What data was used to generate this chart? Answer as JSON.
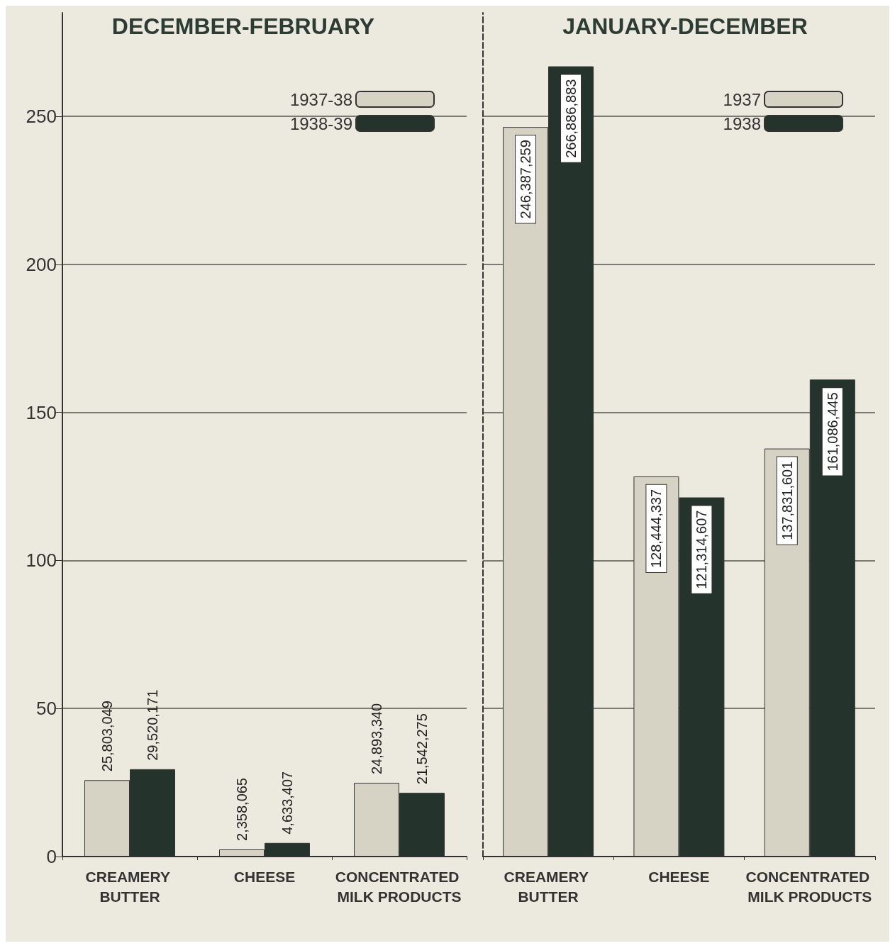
{
  "chart_data": [
    {
      "type": "bar",
      "title": "DECEMBER-FEBRUARY",
      "categories": [
        "CREAMERY BUTTER",
        "CHEESE",
        "CONCENTRATED MILK PRODUCTS"
      ],
      "series": [
        {
          "name": "1937-38",
          "color": "#d6d2c4",
          "values": [
            25.8,
            2.4,
            24.9
          ]
        },
        {
          "name": "1938-39",
          "color": "#24332b",
          "values": [
            29.5,
            4.6,
            21.5
          ]
        }
      ],
      "annotations": [
        {
          "text": "25,803,049",
          "x": "CREAMERY BUTTER",
          "y": 25.8
        },
        {
          "text": "29,520,171",
          "x": "CREAMERY BUTTER",
          "y": 29.5
        },
        {
          "text": "2,358,065",
          "x": "CHEESE",
          "y": 2.4
        },
        {
          "text": "4,633,407",
          "x": "CHEESE",
          "y": 4.6
        },
        {
          "text": "24,893,340",
          "x": "CONCENTRATED MILK PRODUCTS",
          "y": 24.9
        },
        {
          "text": "21,542,275",
          "x": "CONCENTRATED MILK PRODUCTS",
          "y": 21.5
        }
      ],
      "ylim": [
        0,
        285
      ],
      "yticks": [
        0,
        50,
        100,
        150,
        200,
        250
      ],
      "grid": "y",
      "legend": "top right"
    },
    {
      "type": "bar",
      "title": "JANUARY-DECEMBER",
      "categories": [
        "CREAMERY BUTTER",
        "CHEESE",
        "CONCENTRATED MILK PRODUCTS"
      ],
      "series": [
        {
          "name": "1937",
          "color": "#d6d2c4",
          "values": [
            246.4,
            128.4,
            137.8
          ]
        },
        {
          "name": "1938",
          "color": "#24332b",
          "values": [
            266.9,
            121.3,
            161.1
          ]
        }
      ],
      "annotations": [
        {
          "text": "246,387,259",
          "x": "CREAMERY BUTTER",
          "y": 246.4
        },
        {
          "text": "266,886,883",
          "x": "CREAMERY BUTTER",
          "y": 266.9
        },
        {
          "text": "128,444,337",
          "x": "CHEESE",
          "y": 128.4
        },
        {
          "text": "121,314,607",
          "x": "CHEESE",
          "y": 121.3
        },
        {
          "text": "137,831,601",
          "x": "CONCENTRATED MILK PRODUCTS",
          "y": 137.8
        },
        {
          "text": "161,086,445",
          "x": "CONCENTRATED MILK PRODUCTS",
          "y": 161.1
        }
      ],
      "ylim": [
        0,
        285
      ],
      "yticks": [
        0,
        50,
        100,
        150,
        200,
        250
      ],
      "grid": "y",
      "legend": "top right",
      "tick_labels": "x"
    }
  ]
}
